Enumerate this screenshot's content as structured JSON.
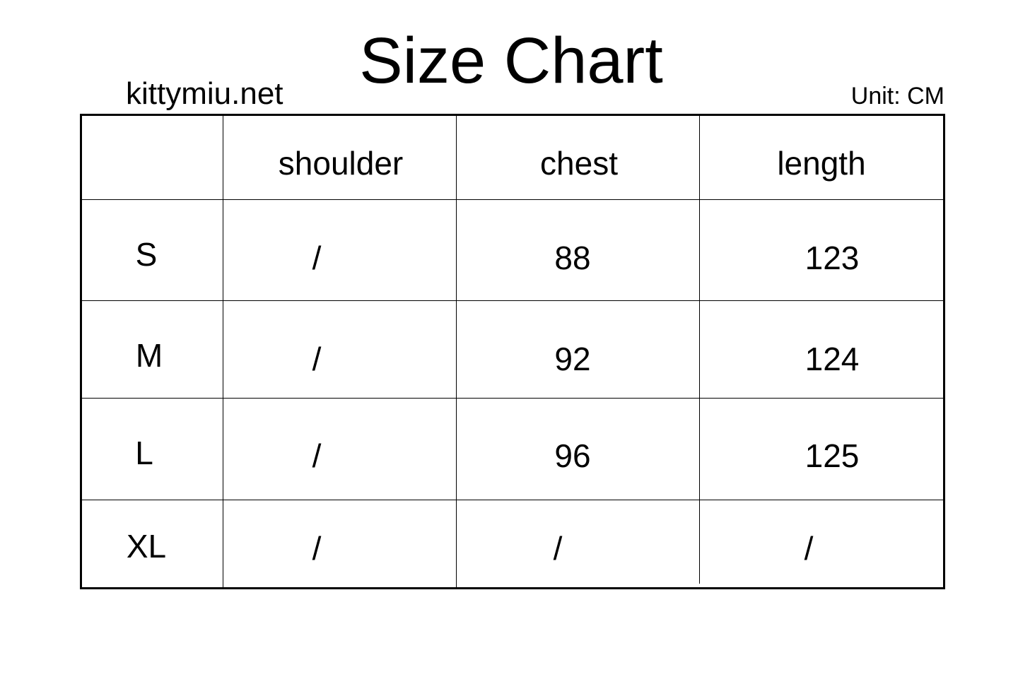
{
  "title": "Size Chart",
  "brand": "kittymiu.net",
  "unit": "Unit: CM",
  "table": {
    "headers": [
      "",
      "shoulder",
      "chest",
      "length"
    ],
    "rows": [
      {
        "size": "S",
        "shoulder": "/",
        "chest": "88",
        "length": "123"
      },
      {
        "size": "M",
        "shoulder": "/",
        "chest": "92",
        "length": "124"
      },
      {
        "size": "L",
        "shoulder": "/",
        "chest": "96",
        "length": "125"
      },
      {
        "size": "XL",
        "shoulder": "/",
        "chest": "/",
        "length": "/"
      }
    ]
  }
}
